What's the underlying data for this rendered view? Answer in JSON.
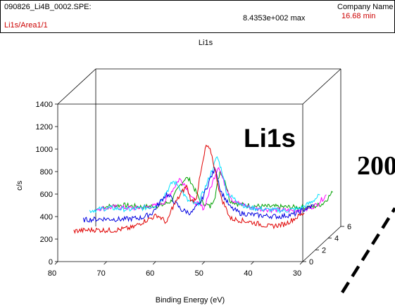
{
  "header": {
    "filename": "090826_Li4B_0002.SPE:",
    "region": "Li1s/Area1/1",
    "max_value": "8.4353e+002 max",
    "company": "Company Name",
    "duration": "16.68 min"
  },
  "colors": {
    "region_text": "#cc0000",
    "axis": "#000000"
  },
  "annotations": {
    "peak_label": "Li1s",
    "cut_off_label": "200"
  },
  "chart_data": {
    "type": "line",
    "subtype": "3d-waterfall",
    "title": "Li1s",
    "xlabel": "Binding Energy (eV)",
    "ylabel": "c/s",
    "zlabel": "",
    "xlim": [
      80,
      30
    ],
    "ylim": [
      0,
      1400
    ],
    "zlim": [
      0,
      6
    ],
    "x_ticks": [
      80,
      70,
      60,
      50,
      40,
      30
    ],
    "y_ticks": [
      0,
      200,
      400,
      600,
      800,
      1000,
      1200,
      1400
    ],
    "z_ticks": [
      0,
      2,
      4,
      6
    ],
    "grid": false,
    "series": [
      {
        "color": "#00a000",
        "depth": 5.5,
        "points": [
          [
            78,
            200
          ],
          [
            74,
            215
          ],
          [
            70,
            200
          ],
          [
            66,
            212
          ],
          [
            64,
            250
          ],
          [
            62,
            400
          ],
          [
            61,
            460
          ],
          [
            60,
            430
          ],
          [
            58,
            250
          ],
          [
            56,
            200
          ],
          [
            55,
            300
          ],
          [
            54,
            520
          ],
          [
            53,
            440
          ],
          [
            52,
            260
          ],
          [
            50,
            220
          ],
          [
            46,
            205
          ],
          [
            42,
            200
          ],
          [
            38,
            195
          ],
          [
            35,
            200
          ],
          [
            33,
            230
          ],
          [
            31,
            330
          ]
        ]
      },
      {
        "color": "#ff00ff",
        "depth": 4.5,
        "points": [
          [
            78,
            235
          ],
          [
            74,
            250
          ],
          [
            70,
            240
          ],
          [
            66,
            260
          ],
          [
            64,
            300
          ],
          [
            62,
            430
          ],
          [
            61,
            500
          ],
          [
            60,
            460
          ],
          [
            58,
            300
          ],
          [
            56,
            240
          ],
          [
            54,
            500
          ],
          [
            53,
            620
          ],
          [
            52,
            480
          ],
          [
            50,
            300
          ],
          [
            46,
            240
          ],
          [
            42,
            225
          ],
          [
            38,
            220
          ],
          [
            35,
            230
          ],
          [
            33,
            270
          ],
          [
            31,
            360
          ]
        ]
      },
      {
        "color": "#00e0ff",
        "depth": 3.5,
        "points": [
          [
            78,
            270
          ],
          [
            74,
            295
          ],
          [
            70,
            280
          ],
          [
            66,
            300
          ],
          [
            64,
            330
          ],
          [
            62,
            460
          ],
          [
            61,
            530
          ],
          [
            60,
            500
          ],
          [
            58,
            360
          ],
          [
            56,
            320
          ],
          [
            54,
            520
          ],
          [
            52,
            750
          ],
          [
            51,
            620
          ],
          [
            50,
            420
          ],
          [
            46,
            300
          ],
          [
            42,
            280
          ],
          [
            38,
            270
          ],
          [
            35,
            290
          ],
          [
            33,
            340
          ],
          [
            31,
            410
          ]
        ]
      },
      {
        "color": "#0000e0",
        "depth": 2.5,
        "points": [
          [
            78,
            240
          ],
          [
            74,
            250
          ],
          [
            70,
            245
          ],
          [
            66,
            260
          ],
          [
            64,
            300
          ],
          [
            62,
            420
          ],
          [
            61,
            470
          ],
          [
            60,
            430
          ],
          [
            58,
            330
          ],
          [
            56,
            300
          ],
          [
            54,
            400
          ],
          [
            52,
            620
          ],
          [
            51,
            700
          ],
          [
            50,
            500
          ],
          [
            48,
            350
          ],
          [
            46,
            300
          ],
          [
            42,
            280
          ],
          [
            38,
            270
          ],
          [
            35,
            290
          ],
          [
            33,
            330
          ],
          [
            31,
            370
          ]
        ]
      },
      {
        "color": "#e00000",
        "depth": 1.0,
        "points": [
          [
            78,
            220
          ],
          [
            74,
            230
          ],
          [
            70,
            225
          ],
          [
            66,
            250
          ],
          [
            64,
            300
          ],
          [
            62,
            340
          ],
          [
            61,
            360
          ],
          [
            60,
            330
          ],
          [
            59,
            290
          ],
          [
            58,
            420
          ],
          [
            56,
            560
          ],
          [
            55,
            620
          ],
          [
            54,
            480
          ],
          [
            53,
            520
          ],
          [
            52,
            760
          ],
          [
            51,
            980
          ],
          [
            50,
            920
          ],
          [
            48,
            520
          ],
          [
            46,
            330
          ],
          [
            42,
            300
          ],
          [
            38,
            260
          ],
          [
            35,
            280
          ],
          [
            33,
            330
          ],
          [
            31,
            380
          ]
        ]
      }
    ]
  }
}
